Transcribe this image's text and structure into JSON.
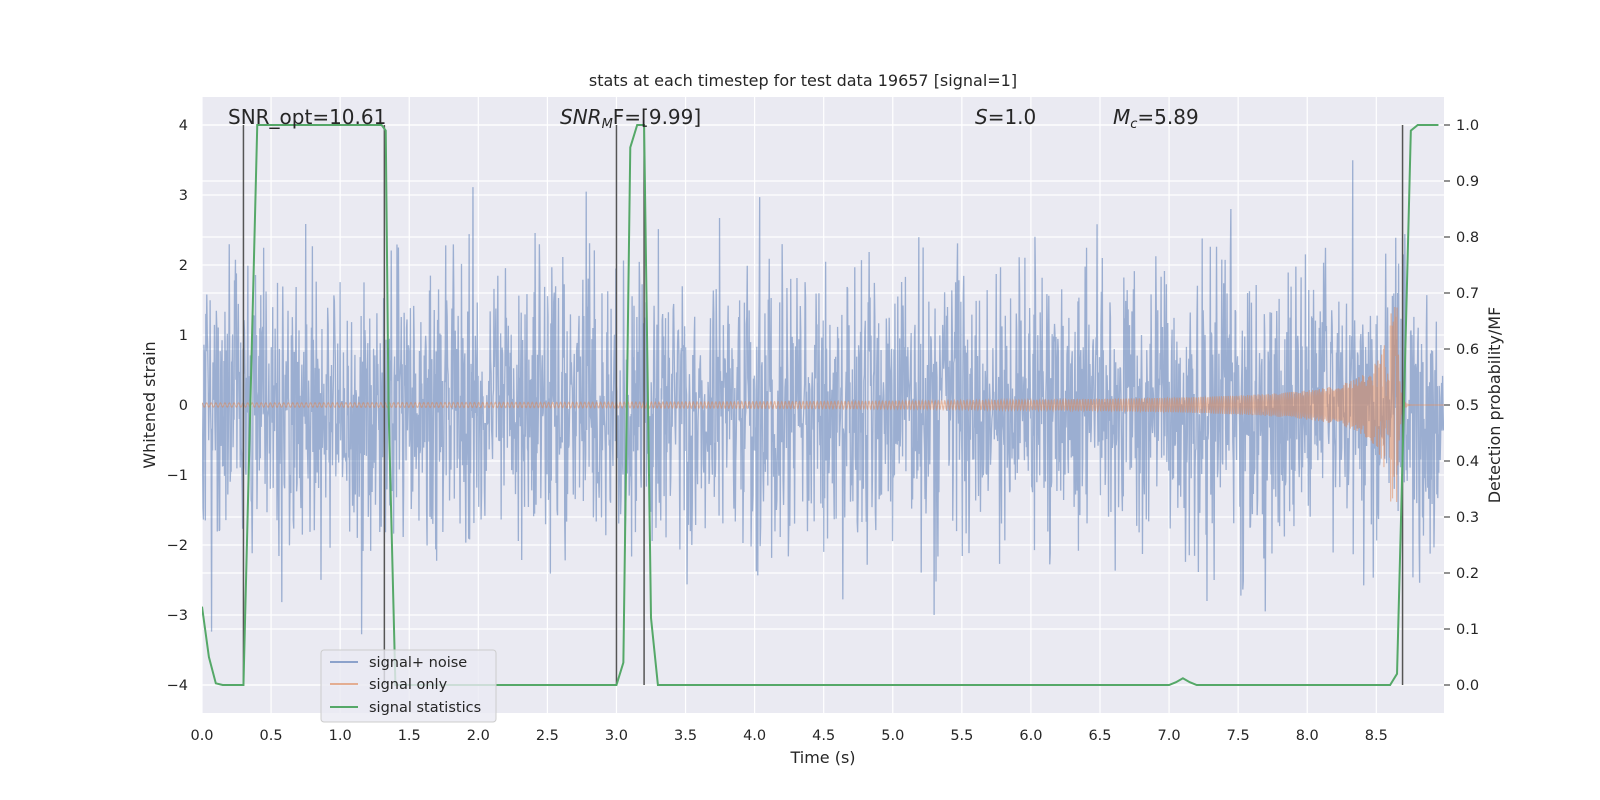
{
  "chart_data": {
    "type": "line",
    "title": "stats at each timestep for test data 19657 [signal=1]",
    "xlabel": "Time (s)",
    "ylabel_left": "Whitened strain",
    "ylabel_right": "Detection probability/MF",
    "xlim": [
      0.0,
      8.99
    ],
    "ylim_left": [
      -4.4,
      4.4
    ],
    "ylim_right": [
      -0.05,
      1.05
    ],
    "x_ticks": [
      0.0,
      0.5,
      1.0,
      1.5,
      2.0,
      2.5,
      3.0,
      3.5,
      4.0,
      4.5,
      5.0,
      5.5,
      6.0,
      6.5,
      7.0,
      7.5,
      8.0,
      8.5
    ],
    "x_tick_labels": [
      "0.0",
      "0.5",
      "1.0",
      "1.5",
      "2.0",
      "2.5",
      "3.0",
      "3.5",
      "4.0",
      "4.5",
      "5.0",
      "5.5",
      "6.0",
      "6.5",
      "7.0",
      "7.5",
      "8.0",
      "8.5"
    ],
    "y_left_ticks": [
      4,
      3,
      2,
      1,
      0,
      -1,
      -2,
      -3,
      -4
    ],
    "y_left_tick_labels": [
      "4",
      "3",
      "2",
      "1",
      "0",
      "−1",
      "−2",
      "−3",
      "−4"
    ],
    "y_right_ticks": [
      1.0,
      0.9,
      0.8,
      0.7,
      0.6,
      0.5,
      0.4,
      0.3,
      0.2,
      0.1,
      0.0
    ],
    "y_right_tick_labels": [
      "1.0",
      "0.9",
      "0.8",
      "0.7",
      "0.6",
      "0.5",
      "0.4",
      "0.3",
      "0.2",
      "0.1",
      "0.0"
    ],
    "grid": true,
    "legend_position": "lower-left",
    "annotations": {
      "snr_opt": "SNR_opt=10.61",
      "snr_mf_main": "SNR",
      "snr_mf_sub": "M",
      "snr_mf_rest": "F=[9.99]",
      "s_label": "S",
      "s_value": "=1.0",
      "mc_main": "M",
      "mc_sub": "c",
      "mc_value": "=5.89"
    },
    "series": [
      {
        "name": "signal+ noise",
        "color": "#4c72b0",
        "opacity": 0.5,
        "kind": "noise",
        "std": 1.0,
        "x_range": [
          0.0,
          8.99
        ]
      },
      {
        "name": "signal only",
        "color": "#dd8452",
        "opacity": 0.5,
        "kind": "chirp",
        "merger_time": 8.65,
        "amplitude_at_start": 0.03,
        "amplitude_peak": 1.4
      },
      {
        "name": "signal statistics",
        "color": "#55a868",
        "axis": "right",
        "x": [
          0.0,
          0.05,
          0.1,
          0.15,
          0.2,
          0.25,
          0.3,
          0.35,
          0.4,
          0.5,
          0.7,
          0.9,
          1.1,
          1.25,
          1.3,
          1.33,
          1.35,
          1.4,
          1.45,
          1.5,
          2.0,
          2.5,
          2.9,
          3.0,
          3.05,
          3.1,
          3.15,
          3.2,
          3.25,
          3.3,
          3.35,
          3.4,
          4.0,
          5.0,
          6.0,
          6.9,
          7.0,
          7.05,
          7.1,
          7.15,
          7.2,
          7.3,
          7.5,
          8.0,
          8.5,
          8.6,
          8.65,
          8.7,
          8.75,
          8.8,
          8.85,
          8.9,
          8.95
        ],
        "y": [
          0.14,
          0.05,
          0.003,
          0.0,
          0.0,
          0.0,
          0.0,
          0.5,
          1.0,
          1.0,
          1.0,
          1.0,
          1.0,
          1.0,
          1.0,
          0.99,
          0.5,
          0.0,
          0.0,
          0.0,
          0.0,
          0.0,
          0.0,
          0.0,
          0.04,
          0.96,
          1.0,
          1.0,
          0.12,
          0.0,
          0.0,
          0.0,
          0.0,
          0.0,
          0.0,
          0.0,
          0.0,
          0.005,
          0.012,
          0.005,
          0.0,
          0.0,
          0.0,
          0.0,
          0.0,
          0.0,
          0.02,
          0.5,
          0.99,
          1.0,
          1.0,
          1.0,
          1.0
        ]
      }
    ],
    "vertical_lines": [
      {
        "x": 0.3,
        "color": "#555555"
      },
      {
        "x": 1.32,
        "color": "#555555"
      },
      {
        "x": 3.0,
        "color": "#555555"
      },
      {
        "x": 3.2,
        "color": "#555555"
      },
      {
        "x": 8.69,
        "color": "#555555"
      }
    ],
    "legend": {
      "items": [
        "signal+ noise",
        "signal only",
        "signal statistics"
      ]
    }
  }
}
